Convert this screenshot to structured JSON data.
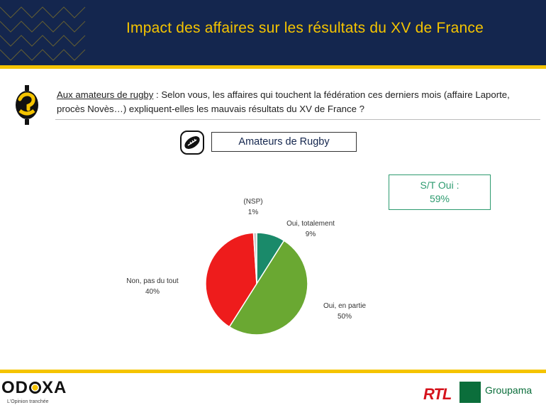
{
  "header": {
    "title": "Impact des affaires sur les résultats du XV de France"
  },
  "question": {
    "audience": "Aux amateurs de rugby",
    "text": " : Selon vous, les affaires qui touchent la fédération ces derniers mois (affaire Laporte, procès Novès…) expliquent-elles les mauvais résultats du XV de France ?"
  },
  "audience_box": {
    "label": "Amateurs de Rugby"
  },
  "summary": {
    "label": "S/T Oui :",
    "value": "59%"
  },
  "footer": {
    "odoxa_left": "OD",
    "odoxa_right": "XA",
    "odoxa_tagline": "L'Opinion tranchée",
    "rtl": "RTL",
    "groupama": "Groupama"
  },
  "colors": {
    "header_bg": "#14264e",
    "accent_yellow": "#f5c400",
    "oui_totalement": "#1a8a6a",
    "oui_en_partie": "#6aa832",
    "non": "#ee1c1c",
    "nsp": "#c9c9c9"
  },
  "chart_data": {
    "type": "pie",
    "title": "",
    "slices": [
      {
        "label": "Oui, totalement",
        "value": 9,
        "value_label": "9%",
        "color": "#1a8a6a"
      },
      {
        "label": "Oui, en partie",
        "value": 50,
        "value_label": "50%",
        "color": "#6aa832"
      },
      {
        "label": "Non, pas du tout",
        "value": 40,
        "value_label": "40%",
        "color": "#ee1c1c"
      },
      {
        "label": "(NSP)",
        "value": 1,
        "value_label": "1%",
        "color": "#c9c9c9"
      }
    ]
  }
}
